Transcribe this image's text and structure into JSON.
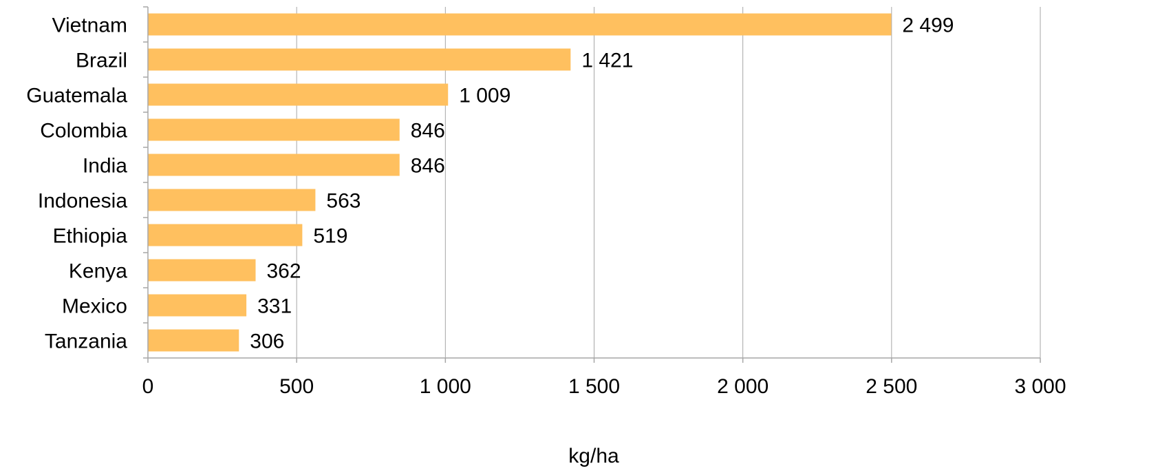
{
  "chart_data": {
    "type": "bar",
    "orientation": "horizontal",
    "categories": [
      "Vietnam",
      "Brazil",
      "Guatemala",
      "Colombia",
      "India",
      "Indonesia",
      "Ethiopia",
      "Kenya",
      "Mexico",
      "Tanzania"
    ],
    "values": [
      2499,
      1421,
      1009,
      846,
      846,
      563,
      519,
      362,
      331,
      306
    ],
    "value_labels": [
      "2 499",
      "1 421",
      "1 009",
      "846",
      "846",
      "563",
      "519",
      "362",
      "331",
      "306"
    ],
    "xlabel": "kg/ha",
    "xlim": [
      0,
      3000
    ],
    "xticks": [
      0,
      500,
      1000,
      1500,
      2000,
      2500,
      3000
    ],
    "xtick_labels": [
      "0",
      "500",
      "1 000",
      "1 500",
      "2 000",
      "2 500",
      "3 000"
    ],
    "grid": true,
    "legend": "none",
    "bar_color": "#FFC05F"
  }
}
